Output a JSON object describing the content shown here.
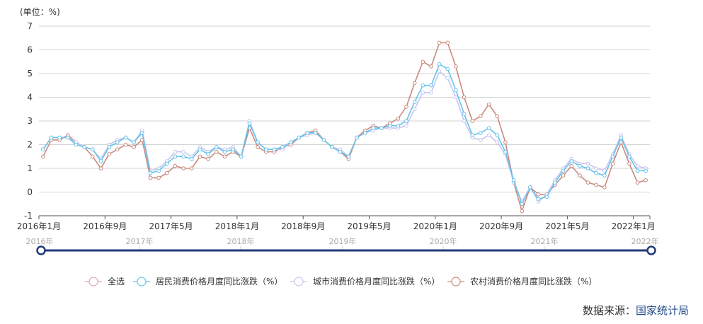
{
  "chart_data": {
    "type": "line",
    "unit_label": "(单位：%)",
    "ylim": [
      -1,
      7
    ],
    "yticks": [
      -1,
      0,
      1,
      2,
      3,
      4,
      5,
      6,
      7
    ],
    "grid": true,
    "x_start": "2016-01",
    "x_end": "2022-02",
    "xtick_labels": [
      "2016年1月",
      "2016年9月",
      "2017年5月",
      "2018年1月",
      "2018年9月",
      "2019年5月",
      "2020年1月",
      "2020年9月",
      "2021年5月",
      "2022年1月"
    ],
    "slider_labels": [
      "2016年",
      "2017年",
      "2018年",
      "2019年",
      "2020年",
      "2021年",
      "2022年"
    ],
    "legend_position": "bottom",
    "legend_select_all": {
      "name": "全选",
      "color": "#e3a3bd"
    },
    "series": [
      {
        "name": "居民消费价格月度同比涨跌（%）",
        "color": "#66c2ea",
        "values": [
          1.8,
          2.3,
          2.3,
          2.3,
          2.0,
          1.9,
          1.8,
          1.3,
          1.9,
          2.1,
          2.3,
          2.1,
          2.5,
          0.8,
          0.9,
          1.2,
          1.5,
          1.5,
          1.4,
          1.8,
          1.6,
          1.9,
          1.7,
          1.8,
          1.5,
          2.9,
          2.1,
          1.8,
          1.8,
          1.9,
          2.1,
          2.3,
          2.5,
          2.5,
          2.2,
          1.9,
          1.7,
          1.5,
          2.3,
          2.5,
          2.7,
          2.7,
          2.8,
          2.8,
          3.0,
          3.8,
          4.5,
          4.5,
          5.4,
          5.2,
          4.3,
          3.3,
          2.4,
          2.5,
          2.7,
          2.4,
          1.7,
          0.5,
          -0.5,
          0.2,
          -0.3,
          -0.2,
          0.4,
          0.9,
          1.3,
          1.1,
          1.0,
          0.8,
          0.7,
          1.5,
          2.3,
          1.5,
          0.9,
          0.9
        ]
      },
      {
        "name": "城市消费价格月度同比涨跌（%）",
        "color": "#c6c6f0",
        "values": [
          1.8,
          2.3,
          2.3,
          2.3,
          2.1,
          1.9,
          1.8,
          1.4,
          2.0,
          2.2,
          2.3,
          2.1,
          2.6,
          0.9,
          1.0,
          1.3,
          1.7,
          1.7,
          1.5,
          1.9,
          1.7,
          1.9,
          1.8,
          1.9,
          1.5,
          3.0,
          2.1,
          1.8,
          1.8,
          1.8,
          2.1,
          2.3,
          2.4,
          2.5,
          2.2,
          1.9,
          1.8,
          1.5,
          2.3,
          2.5,
          2.6,
          2.7,
          2.7,
          2.7,
          2.8,
          3.5,
          4.2,
          4.2,
          5.1,
          4.8,
          4.0,
          3.0,
          2.3,
          2.2,
          2.4,
          2.1,
          1.6,
          0.4,
          -0.4,
          0.2,
          -0.4,
          -0.1,
          0.5,
          1.0,
          1.4,
          1.2,
          1.2,
          1.0,
          0.9,
          1.6,
          2.4,
          1.6,
          1.1,
          1.0
        ]
      },
      {
        "name": "农村消费价格月度同比涨跌（%）",
        "color": "#c98a7e",
        "values": [
          1.5,
          2.2,
          2.2,
          2.4,
          2.1,
          1.9,
          1.5,
          1.0,
          1.6,
          1.8,
          2.0,
          1.9,
          2.2,
          0.6,
          0.6,
          0.8,
          1.1,
          1.0,
          1.0,
          1.5,
          1.4,
          1.7,
          1.5,
          1.7,
          1.5,
          2.7,
          1.9,
          1.7,
          1.7,
          1.9,
          2.0,
          2.3,
          2.5,
          2.6,
          2.2,
          1.9,
          1.7,
          1.4,
          2.3,
          2.6,
          2.8,
          2.7,
          2.9,
          3.1,
          3.6,
          4.6,
          5.5,
          5.3,
          6.3,
          6.3,
          5.3,
          4.0,
          3.0,
          3.2,
          3.7,
          3.2,
          2.1,
          0.4,
          -0.8,
          0.2,
          -0.1,
          -0.1,
          0.3,
          0.7,
          1.1,
          0.7,
          0.4,
          0.3,
          0.2,
          1.2,
          2.1,
          1.2,
          0.4,
          0.5
        ]
      }
    ],
    "slider_color": "#1f3a78"
  },
  "footer": {
    "source_label": "数据来源：",
    "source_org": "国家统计局"
  }
}
